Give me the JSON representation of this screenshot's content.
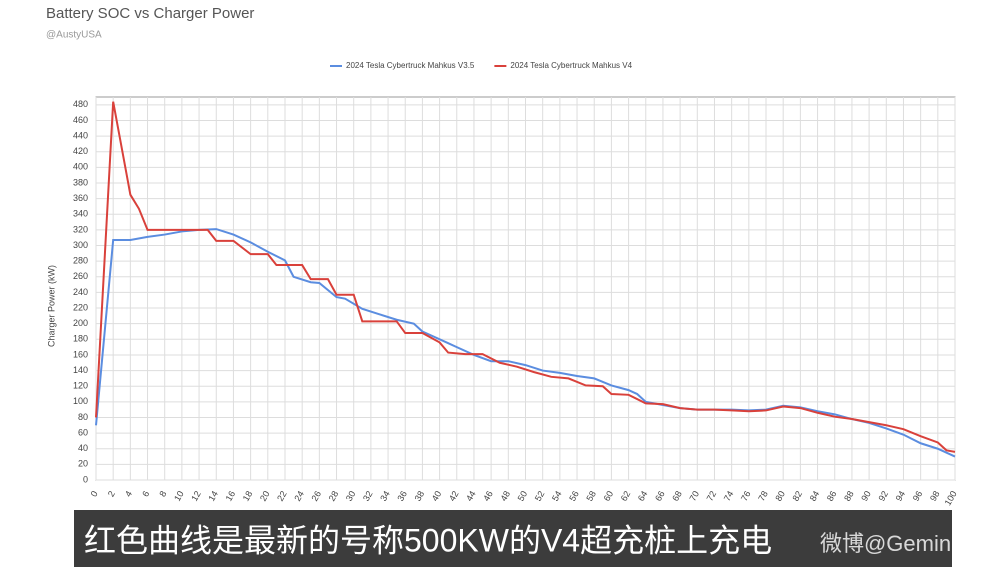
{
  "chart_data": {
    "type": "line",
    "title": "Battery SOC vs Charger Power",
    "subtitle": "@AustyUSA",
    "y_label": "Charger Power (kW)",
    "xlim": [
      0,
      100
    ],
    "xticks": [
      0,
      2,
      4,
      6,
      8,
      10,
      12,
      14,
      16,
      18,
      20,
      22,
      24,
      26,
      28,
      30,
      32,
      34,
      36,
      38,
      40,
      42,
      44,
      46,
      48,
      50,
      52,
      54,
      56,
      58,
      60,
      62,
      64,
      66,
      68,
      70,
      72,
      74,
      76,
      78,
      80,
      82,
      84,
      86,
      88,
      90,
      92,
      94,
      96,
      98,
      100
    ],
    "ylim": [
      0,
      490
    ],
    "yticks": [
      0,
      20,
      40,
      60,
      80,
      100,
      120,
      140,
      160,
      180,
      200,
      220,
      240,
      260,
      280,
      300,
      320,
      340,
      360,
      380,
      400,
      420,
      440,
      460,
      480
    ],
    "grid": true,
    "legend": "top",
    "series": [
      {
        "name": "2024 Tesla Cybertruck Mahkus V3.5",
        "color": "#5b8de0",
        "x": [
          0,
          2,
          4,
          6,
          8,
          10,
          12,
          14,
          16,
          18,
          20,
          22,
          23,
          25,
          26,
          28,
          29,
          31,
          33,
          35,
          37,
          38,
          39,
          41,
          42,
          44,
          46,
          48,
          50,
          52,
          54,
          56,
          58,
          60,
          62,
          63,
          64,
          66,
          68,
          70,
          72,
          74,
          76,
          78,
          80,
          82,
          84,
          86,
          88,
          90,
          92,
          94,
          96,
          98,
          100
        ],
        "values": [
          70,
          307,
          307,
          311,
          314,
          318,
          320,
          321,
          314,
          304,
          292,
          281,
          260,
          253,
          252,
          234,
          232,
          219,
          212,
          205,
          200,
          190,
          185,
          175,
          170,
          160,
          152,
          152,
          147,
          140,
          137,
          133,
          130,
          121,
          115,
          110,
          100,
          96,
          92,
          90,
          90,
          90,
          89,
          90,
          95,
          93,
          88,
          84,
          78,
          73,
          66,
          58,
          47,
          40,
          30
        ]
      },
      {
        "name": "2024 Tesla Cybertruck Mahkus V4",
        "color": "#d9413b",
        "x": [
          0,
          2,
          4,
          5,
          6,
          8,
          10,
          12,
          13,
          14,
          16,
          18,
          20,
          21,
          24,
          25,
          27,
          28,
          30,
          31,
          35,
          36,
          38,
          40,
          41,
          43,
          45,
          47,
          49,
          51,
          53,
          55,
          57,
          59,
          60,
          62,
          64,
          66,
          68,
          70,
          72,
          74,
          76,
          78,
          80,
          82,
          84,
          86,
          88,
          90,
          92,
          94,
          96,
          98,
          99,
          100
        ],
        "values": [
          80,
          484,
          365,
          347,
          320,
          320,
          320,
          320,
          320,
          306,
          306,
          289,
          289,
          275,
          275,
          257,
          257,
          237,
          237,
          203,
          203,
          188,
          188,
          176,
          163,
          161,
          161,
          150,
          145,
          138,
          132,
          130,
          121,
          120,
          110,
          109,
          98,
          97,
          92,
          90,
          90,
          89,
          88,
          89,
          94,
          92,
          86,
          81,
          78,
          74,
          70,
          65,
          56,
          48,
          38,
          36
        ]
      }
    ]
  },
  "caption": "红色曲线是最新的号称500KW的V4超充桩上充电",
  "watermark": "微博@Gemini迷你"
}
